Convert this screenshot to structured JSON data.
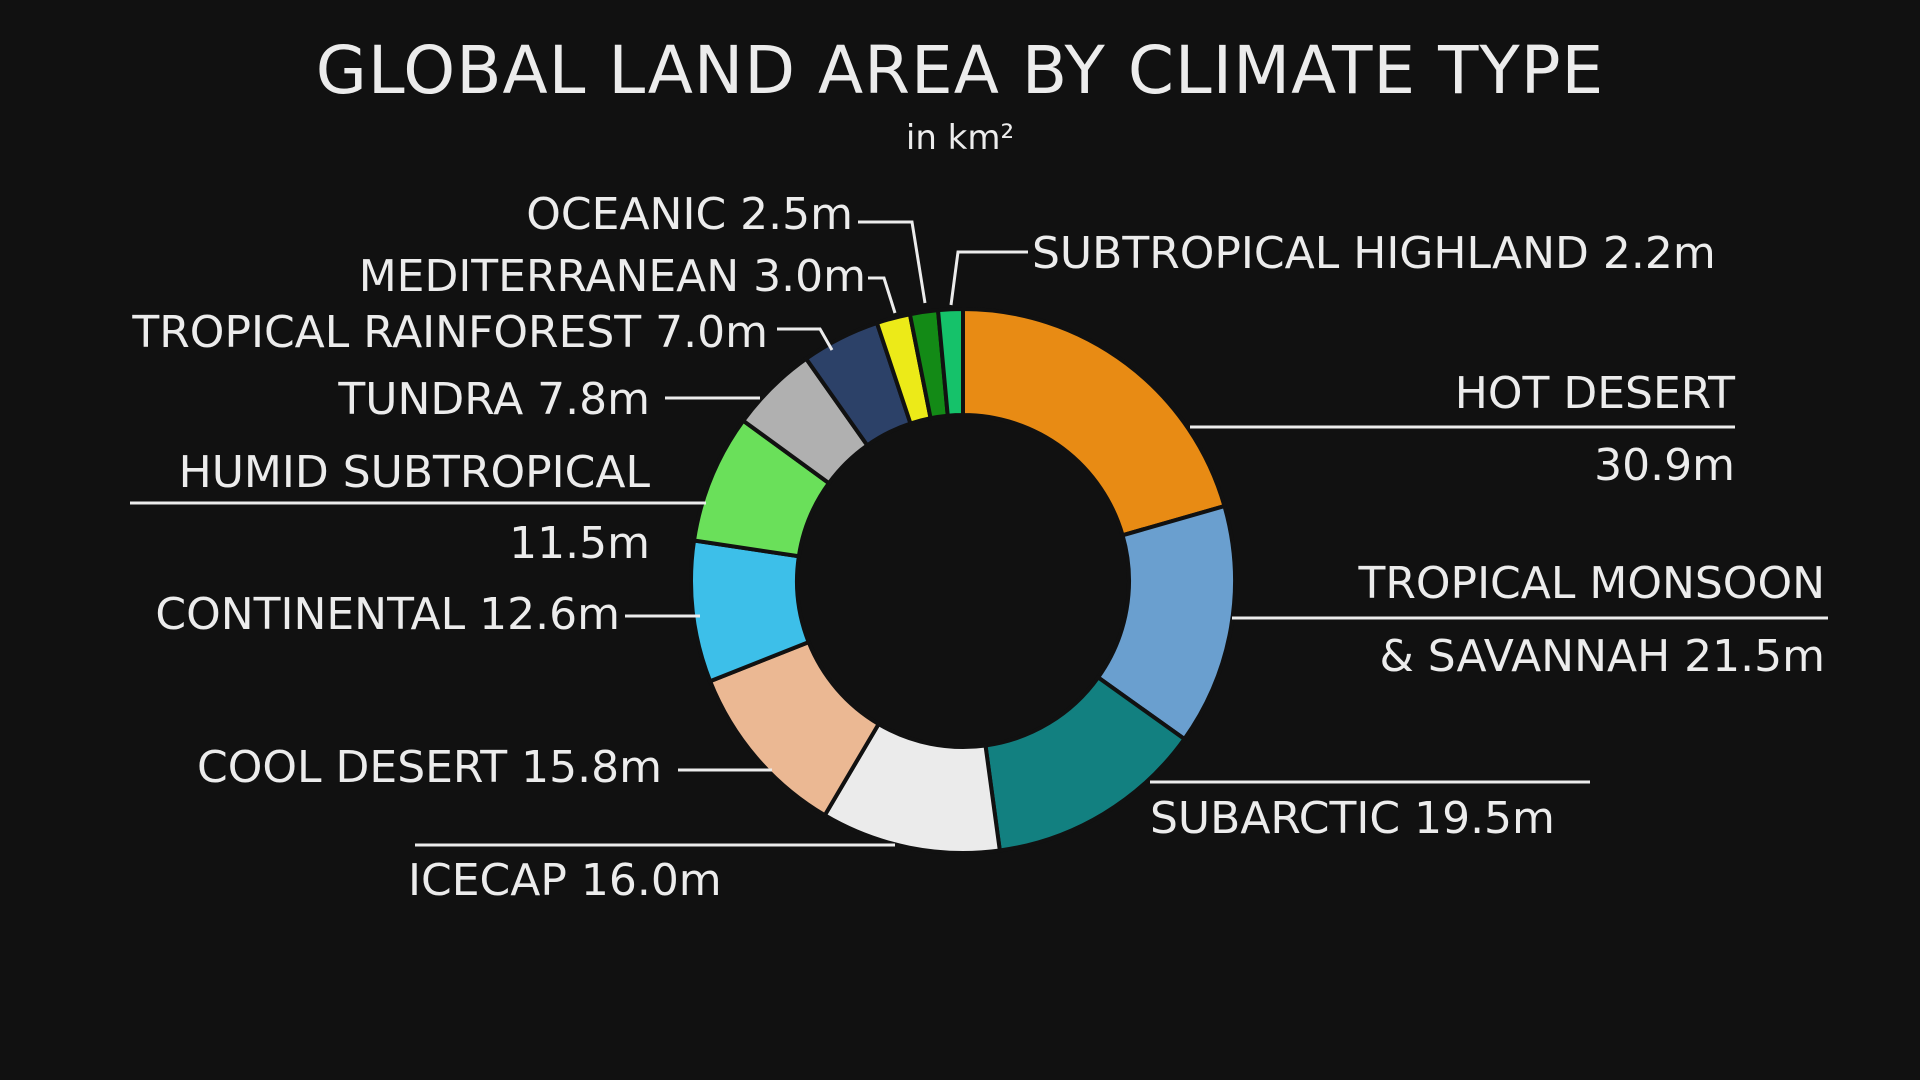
{
  "header": {
    "title": "GLOBAL LAND AREA BY CLIMATE TYPE",
    "subtitle": "in km²"
  },
  "labels": {
    "hot_desert_name": "HOT DESERT",
    "hot_desert_value": "30.9m",
    "tropical_monsoon_line1": "TROPICAL MONSOON",
    "tropical_monsoon_line2": "& SAVANNAH 21.5m",
    "subarctic": "SUBARCTIC 19.5m",
    "icecap": "ICECAP 16.0m",
    "cool_desert": "COOL DESERT 15.8m",
    "continental": "CONTINENTAL 12.6m",
    "humid_subtropical_name": "HUMID SUBTROPICAL",
    "humid_subtropical_value": "11.5m",
    "tundra": "TUNDRA 7.8m",
    "tropical_rainforest": "TROPICAL RAINFOREST 7.0m",
    "mediterranean": "MEDITERRANEAN 3.0m",
    "oceanic": "OCEANIC 2.5m",
    "subtropical_highland": "SUBTROPICAL HIGHLAND 2.2m"
  },
  "colors": {
    "background": "#111111",
    "text": "#ececec"
  },
  "chart_data": {
    "type": "pie",
    "variant": "donut",
    "title": "GLOBAL LAND AREA BY CLIMATE TYPE",
    "subtitle": "in km²",
    "unit": "million km²",
    "start_angle": "12 o'clock, clockwise",
    "categories": [
      "Hot Desert",
      "Tropical Monsoon & Savannah",
      "Subarctic",
      "Icecap",
      "Cool Desert",
      "Continental",
      "Humid Subtropical",
      "Tundra",
      "Tropical Rainforest",
      "Mediterranean",
      "Oceanic",
      "Subtropical Highland"
    ],
    "values": [
      30.9,
      21.5,
      19.5,
      16.0,
      15.8,
      12.6,
      11.5,
      7.8,
      7.0,
      3.0,
      2.5,
      2.2
    ],
    "colors": [
      "#e88b14",
      "#6a9fcf",
      "#128080",
      "#ebebeb",
      "#ebb893",
      "#3dbfe9",
      "#6ae05a",
      "#b0b0b0",
      "#2c4168",
      "#ecea18",
      "#138a16",
      "#15c26a"
    ],
    "legend": "none (direct labels with leader lines)"
  }
}
